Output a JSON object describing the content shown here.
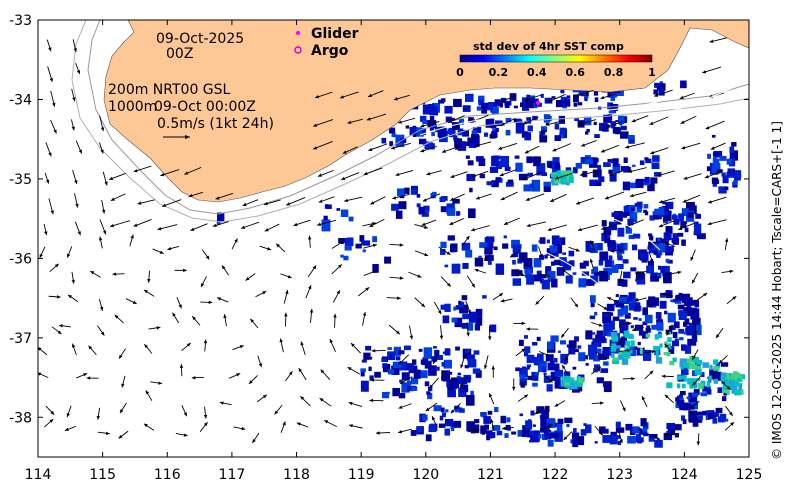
{
  "map": {
    "date_line1": "09-Oct-2025",
    "date_line2": "00Z",
    "info_line1": "200m  NRT00 GSL",
    "info_line2_a": "1000m",
    "info_line2_b": "09-Oct 00:00Z",
    "scale_text": "0.5m/s (1kt 24h)",
    "legend_glider": "Glider",
    "legend_argo": "Argo",
    "colorbar_title": "std dev of 4hr SST comp",
    "colorbar_ticks": [
      "0",
      "0.2",
      "0.4",
      "0.6",
      "0.8",
      "1"
    ],
    "colorbar_range": [
      0,
      1
    ],
    "credit": "© IMOS 12-Oct-2025 14:44 Hobart; Tscale=CARS+[-1 1]",
    "x_ticks": [
      "114",
      "115",
      "116",
      "117",
      "118",
      "119",
      "120",
      "121",
      "122",
      "123",
      "124",
      "125"
    ],
    "y_ticks": [
      "-33",
      "-34",
      "-35",
      "-36",
      "-37",
      "-38"
    ],
    "lon_range": [
      114,
      125
    ],
    "lat_range": [
      -38.5,
      -33
    ],
    "colors": {
      "land": "#fdc796",
      "glider": "#ff00ff",
      "argo": "#cc00cc",
      "sst_low": "#00008f",
      "sst_mid": "#00d0a0"
    }
  }
}
